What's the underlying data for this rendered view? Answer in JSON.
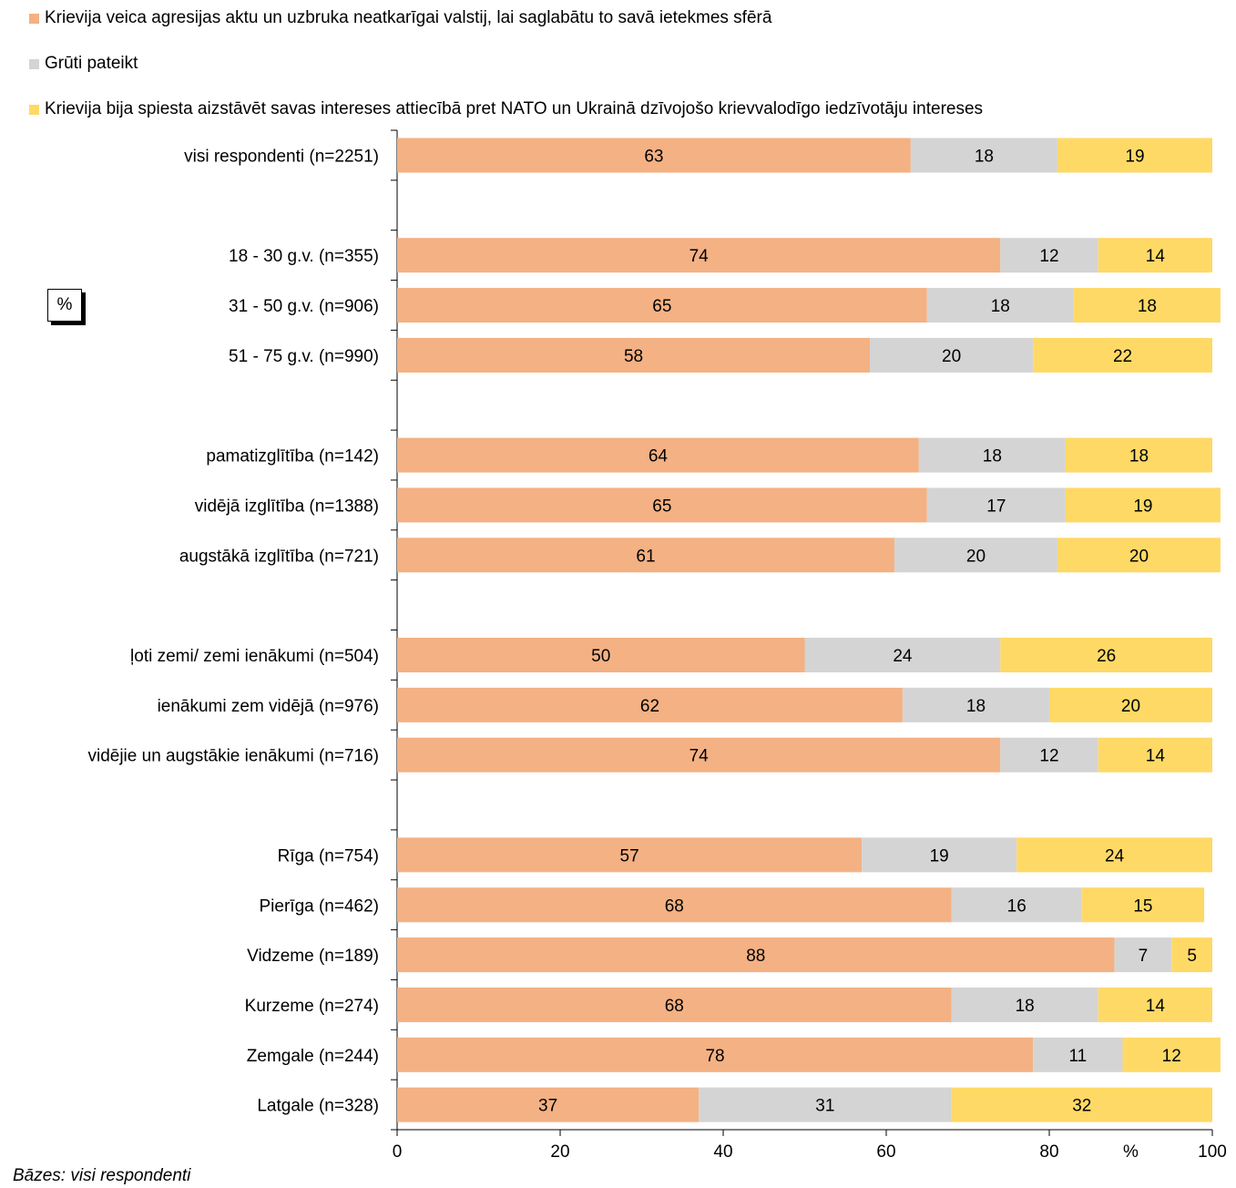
{
  "chart_data": {
    "type": "bar",
    "orientation": "horizontal",
    "stacked": true,
    "unit_label": "%",
    "axis_unit_label": "%",
    "xlim": [
      0,
      100
    ],
    "x_ticks": [
      0,
      20,
      40,
      60,
      80,
      100
    ],
    "series": [
      {
        "name": "Krievija veica agresijas aktu un uzbruka neatkarīgai valstij, lai saglabātu to savā ietekmes sfērā",
        "color": "#f4b183"
      },
      {
        "name": "Grūti pateikt",
        "color": "#d4d4d4"
      },
      {
        "name": "Krievija bija spiesta aizstāvēt savas intereses attiecībā pret NATO un Ukrainā dzīvojošo krievvalodīgo iedzīvotāju intereses",
        "color": "#ffd966"
      }
    ],
    "rows": [
      {
        "label": "visi respondenti (n=2251)",
        "values": [
          63,
          18,
          19
        ],
        "slot": 0
      },
      {
        "label": "18 - 30 g.v. (n=355)",
        "values": [
          74,
          12,
          14
        ],
        "slot": 2
      },
      {
        "label": "31 - 50 g.v. (n=906)",
        "values": [
          65,
          18,
          18
        ],
        "slot": 3
      },
      {
        "label": "51 - 75 g.v. (n=990)",
        "values": [
          58,
          20,
          22
        ],
        "slot": 4
      },
      {
        "label": "pamatizglītība (n=142)",
        "values": [
          64,
          18,
          18
        ],
        "slot": 6
      },
      {
        "label": "vidējā izglītība (n=1388)",
        "values": [
          65,
          17,
          19
        ],
        "slot": 7
      },
      {
        "label": "augstākā izglītība (n=721)",
        "values": [
          61,
          20,
          20
        ],
        "slot": 8
      },
      {
        "label": "ļoti zemi/ zemi ienākumi (n=504)",
        "values": [
          50,
          24,
          26
        ],
        "slot": 10
      },
      {
        "label": "ienākumi zem vidējā (n=976)",
        "values": [
          62,
          18,
          20
        ],
        "slot": 11
      },
      {
        "label": "vidējie un augstākie ienākumi (n=716)",
        "values": [
          74,
          12,
          14
        ],
        "slot": 12
      },
      {
        "label": "Rīga (n=754)",
        "values": [
          57,
          19,
          24
        ],
        "slot": 14
      },
      {
        "label": "Pierīga (n=462)",
        "values": [
          68,
          16,
          15
        ],
        "slot": 15
      },
      {
        "label": "Vidzeme (n=189)",
        "values": [
          88,
          7,
          5
        ],
        "slot": 16
      },
      {
        "label": "Kurzeme (n=274)",
        "values": [
          68,
          18,
          14
        ],
        "slot": 17
      },
      {
        "label": "Zemgale (n=244)",
        "values": [
          78,
          11,
          12
        ],
        "slot": 18
      },
      {
        "label": "Latgale (n=328)",
        "values": [
          37,
          31,
          32
        ],
        "slot": 19
      }
    ],
    "grid": false,
    "legend_position": "top"
  },
  "footnote": "Bāzes: visi respondenti"
}
